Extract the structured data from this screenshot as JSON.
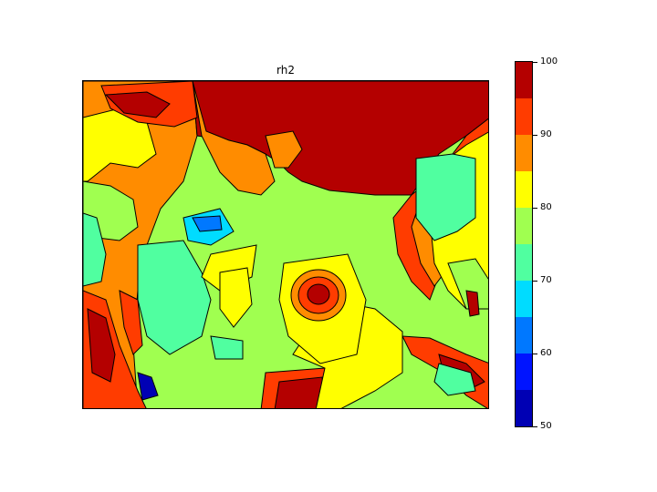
{
  "map": {
    "title": "rh2",
    "variable": "rh2",
    "colorbar": {
      "min": 50,
      "max": 100,
      "levels": [
        50,
        55,
        60,
        65,
        70,
        75,
        80,
        85,
        90,
        95,
        100
      ],
      "tick_labels": [
        "50",
        "60",
        "70",
        "80",
        "90",
        "100"
      ],
      "colors": [
        "#0000b4",
        "#0014ff",
        "#0078ff",
        "#00dcff",
        "#50ffa0",
        "#a0ff50",
        "#ffff00",
        "#ff8c00",
        "#ff3c00",
        "#b40000"
      ]
    },
    "palette": {
      "land_high": "#b40000",
      "red": "#ff3c00",
      "orange": "#ff8c00",
      "yellow": "#ffff00",
      "lightgreen": "#a0ff50",
      "aqua_green": "#50ffa0",
      "cyan": "#00dcff",
      "blue": "#0078ff",
      "deep_blue": "#0000b4"
    }
  }
}
